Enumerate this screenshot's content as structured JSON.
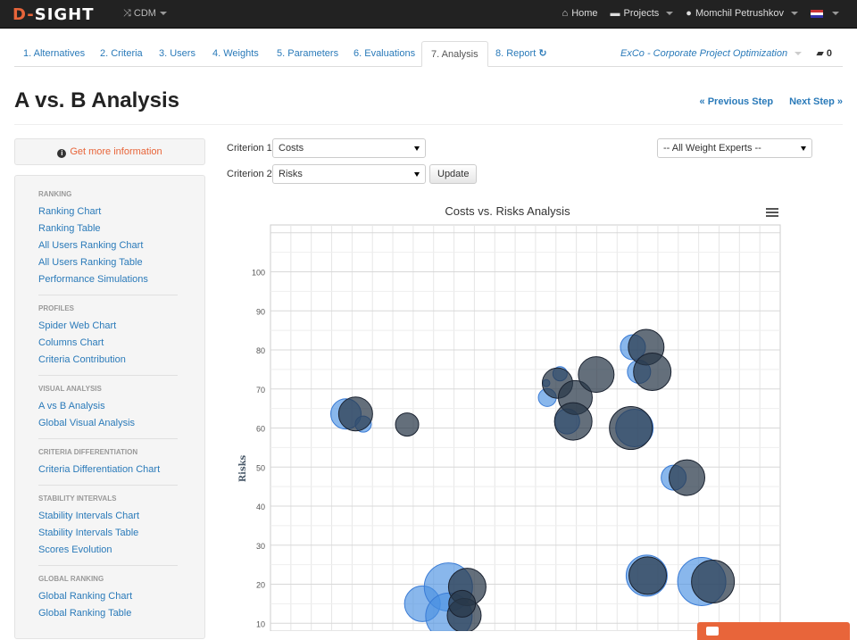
{
  "navbar": {
    "brand_prefix": "D-",
    "brand_suffix": "SIGHT",
    "project_menu": "CDM",
    "home": "Home",
    "projects": "Projects",
    "user": "Momchil Petrushkov"
  },
  "tabs": [
    {
      "label": "1. Alternatives"
    },
    {
      "label": "2. Criteria"
    },
    {
      "label": "3. Users"
    },
    {
      "label": "4. Weights"
    },
    {
      "label": "5. Parameters"
    },
    {
      "label": "6. Evaluations"
    },
    {
      "label": "7. Analysis"
    },
    {
      "label": "8. Report"
    }
  ],
  "project_name": "ExCo - Corporate Project Optimization",
  "comment_count": "0",
  "page": {
    "title": "A vs. B Analysis",
    "prev_step": "« Previous Step",
    "next_step": "Next Step »"
  },
  "sidebar": {
    "info": "Get more information",
    "sections": [
      {
        "head": "RANKING",
        "items": [
          "Ranking Chart",
          "Ranking Table",
          "All Users Ranking Chart",
          "All Users Ranking Table",
          "Performance Simulations"
        ]
      },
      {
        "head": "PROFILES",
        "items": [
          "Spider Web Chart",
          "Columns Chart",
          "Criteria Contribution"
        ]
      },
      {
        "head": "VISUAL ANALYSIS",
        "items": [
          "A vs B Analysis",
          "Global Visual Analysis"
        ]
      },
      {
        "head": "CRITERIA DIFFERENTIATION",
        "items": [
          "Criteria Differentiation Chart"
        ]
      },
      {
        "head": "STABILITY INTERVALS",
        "items": [
          "Stability Intervals Chart",
          "Stability Intervals Table",
          "Scores Evolution"
        ]
      },
      {
        "head": "GLOBAL RANKING",
        "items": [
          "Global Ranking Chart",
          "Global Ranking Table"
        ]
      }
    ]
  },
  "controls": {
    "criterion1_label": "Criterion 1",
    "criterion1_value": "Costs",
    "criterion2_label": "Criterion 2",
    "criterion2_value": "Risks",
    "update": "Update",
    "experts_value": "-- All Weight Experts --"
  },
  "colors": {
    "blue_bubble": "#4a90e2",
    "dark_bubble": "#2b3a4a",
    "accent": "#e8653a"
  },
  "chart_data": {
    "type": "scatter",
    "title": "Costs vs. Risks Analysis",
    "ylabel": "Risks",
    "xlabel": "",
    "ylim": [
      8,
      112
    ],
    "xlim": [
      0,
      100
    ],
    "y_ticks": [
      10,
      20,
      30,
      40,
      50,
      60,
      70,
      80,
      90,
      100
    ],
    "grid": true,
    "series": [
      {
        "color": "blue",
        "points": [
          {
            "x": 14.8,
            "y": 63.6,
            "r": 17
          },
          {
            "x": 18.2,
            "y": 61.0,
            "r": 9
          },
          {
            "x": 54.1,
            "y": 71.5,
            "r": 4
          },
          {
            "x": 54.3,
            "y": 67.8,
            "r": 10
          },
          {
            "x": 56.8,
            "y": 73.9,
            "r": 8
          },
          {
            "x": 58.2,
            "y": 61.7,
            "r": 14
          },
          {
            "x": 71.1,
            "y": 80.7,
            "r": 14
          },
          {
            "x": 72.3,
            "y": 74.4,
            "r": 13
          },
          {
            "x": 71.4,
            "y": 60.0,
            "r": 21
          },
          {
            "x": 79.1,
            "y": 47.3,
            "r": 14
          },
          {
            "x": 73.8,
            "y": 22.2,
            "r": 23
          },
          {
            "x": 84.6,
            "y": 20.7,
            "r": 27
          },
          {
            "x": 29.8,
            "y": 15.0,
            "r": 20
          },
          {
            "x": 34.9,
            "y": 19.3,
            "r": 27
          },
          {
            "x": 35.0,
            "y": 11.8,
            "r": 26
          }
        ]
      },
      {
        "color": "dark",
        "points": [
          {
            "x": 16.7,
            "y": 63.6,
            "r": 19
          },
          {
            "x": 26.8,
            "y": 60.9,
            "r": 13
          },
          {
            "x": 56.3,
            "y": 71.5,
            "r": 17
          },
          {
            "x": 59.8,
            "y": 67.8,
            "r": 19
          },
          {
            "x": 59.4,
            "y": 61.7,
            "r": 21
          },
          {
            "x": 63.9,
            "y": 73.7,
            "r": 20
          },
          {
            "x": 73.7,
            "y": 80.7,
            "r": 20
          },
          {
            "x": 74.9,
            "y": 74.4,
            "r": 21
          },
          {
            "x": 70.7,
            "y": 60.0,
            "r": 24
          },
          {
            "x": 81.7,
            "y": 47.3,
            "r": 20
          },
          {
            "x": 74.0,
            "y": 22.2,
            "r": 21
          },
          {
            "x": 86.8,
            "y": 20.7,
            "r": 24
          },
          {
            "x": 38.6,
            "y": 19.3,
            "r": 21
          },
          {
            "x": 38.0,
            "y": 12.0,
            "r": 19
          },
          {
            "x": 37.6,
            "y": 15.0,
            "r": 15
          }
        ]
      }
    ]
  }
}
